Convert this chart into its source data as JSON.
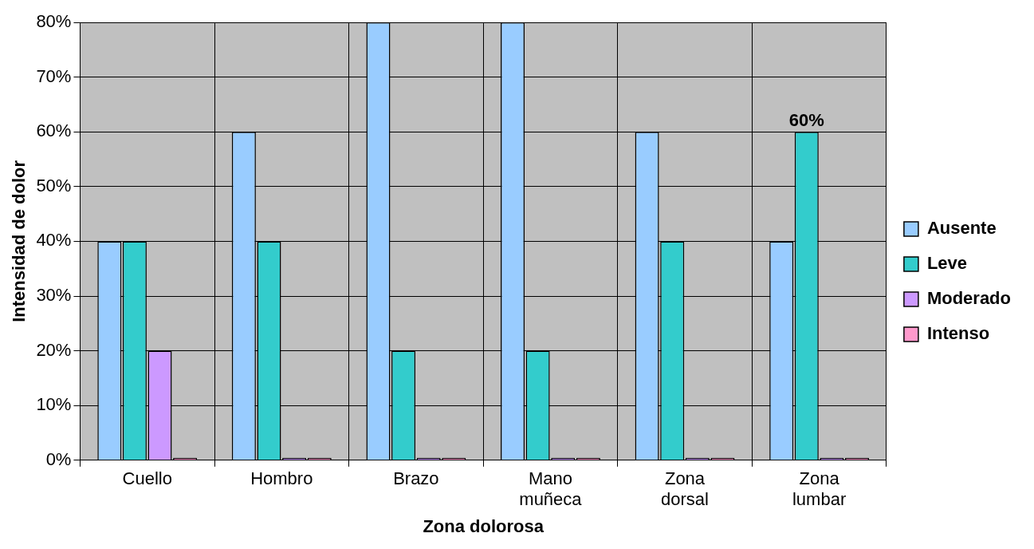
{
  "chart_data": {
    "type": "bar",
    "xlabel": "Zona dolorosa",
    "ylabel": "Intensidad de dolor",
    "categories": [
      "Cuello",
      "Hombro",
      "Brazo",
      "Mano muñeca",
      "Zona dorsal",
      "Zona lumbar"
    ],
    "series": [
      {
        "name": "Ausente",
        "color": "#99ccff",
        "values": [
          40,
          60,
          80,
          80,
          60,
          40
        ]
      },
      {
        "name": "Leve",
        "color": "#33cccc",
        "values": [
          40,
          40,
          20,
          20,
          40,
          60
        ],
        "value_labels": [
          null,
          null,
          null,
          null,
          null,
          "60%"
        ]
      },
      {
        "name": "Moderado",
        "color": "#cc99ff",
        "values": [
          20,
          0,
          0,
          0,
          0,
          0
        ]
      },
      {
        "name": "Intenso",
        "color": "#ff99cc",
        "values": [
          0,
          0,
          0,
          0,
          0,
          0
        ]
      }
    ],
    "ylim": [
      0,
      80
    ],
    "yticks": [
      {
        "value": 0,
        "label": "0%"
      },
      {
        "value": 10,
        "label": "10%"
      },
      {
        "value": 20,
        "label": "20%"
      },
      {
        "value": 30,
        "label": "30%"
      },
      {
        "value": 40,
        "label": "40%"
      },
      {
        "value": 50,
        "label": "50%"
      },
      {
        "value": 60,
        "label": "60%"
      },
      {
        "value": 70,
        "label": "70%"
      },
      {
        "value": 80,
        "label": "80%"
      }
    ],
    "grid": true,
    "legend": "right"
  }
}
